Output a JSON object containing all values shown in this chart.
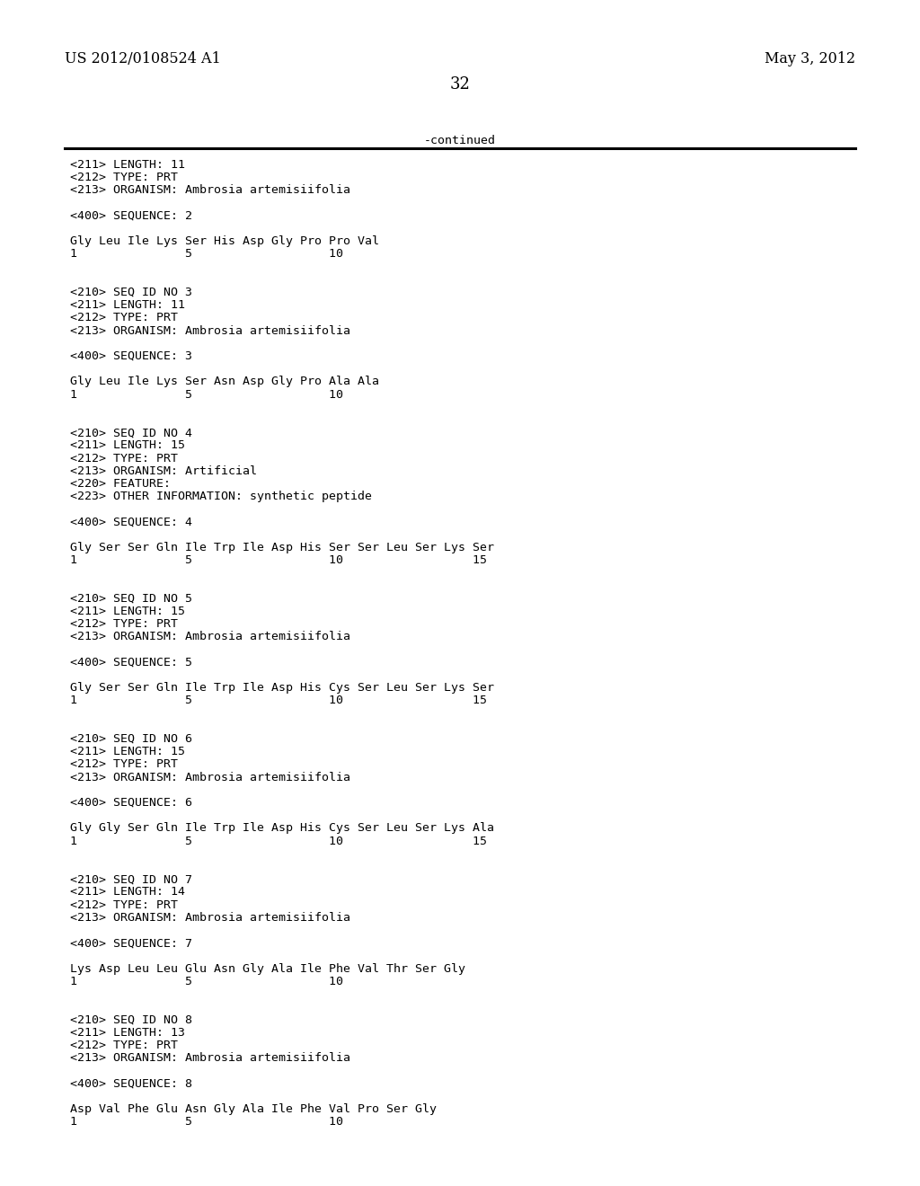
{
  "bg_color": "#ffffff",
  "header_left": "US 2012/0108524 A1",
  "header_right": "May 3, 2012",
  "page_number": "32",
  "continued_text": "-continued",
  "font_size_header": 11.5,
  "font_size_page": 13,
  "font_size_mono": 9.5,
  "lines": [
    "<211> LENGTH: 11",
    "<212> TYPE: PRT",
    "<213> ORGANISM: Ambrosia artemisiifolia",
    "",
    "<400> SEQUENCE: 2",
    "",
    "Gly Leu Ile Lys Ser His Asp Gly Pro Pro Val",
    "1               5                   10",
    "",
    "",
    "<210> SEQ ID NO 3",
    "<211> LENGTH: 11",
    "<212> TYPE: PRT",
    "<213> ORGANISM: Ambrosia artemisiifolia",
    "",
    "<400> SEQUENCE: 3",
    "",
    "Gly Leu Ile Lys Ser Asn Asp Gly Pro Ala Ala",
    "1               5                   10",
    "",
    "",
    "<210> SEQ ID NO 4",
    "<211> LENGTH: 15",
    "<212> TYPE: PRT",
    "<213> ORGANISM: Artificial",
    "<220> FEATURE:",
    "<223> OTHER INFORMATION: synthetic peptide",
    "",
    "<400> SEQUENCE: 4",
    "",
    "Gly Ser Ser Gln Ile Trp Ile Asp His Ser Ser Leu Ser Lys Ser",
    "1               5                   10                  15",
    "",
    "",
    "<210> SEQ ID NO 5",
    "<211> LENGTH: 15",
    "<212> TYPE: PRT",
    "<213> ORGANISM: Ambrosia artemisiifolia",
    "",
    "<400> SEQUENCE: 5",
    "",
    "Gly Ser Ser Gln Ile Trp Ile Asp His Cys Ser Leu Ser Lys Ser",
    "1               5                   10                  15",
    "",
    "",
    "<210> SEQ ID NO 6",
    "<211> LENGTH: 15",
    "<212> TYPE: PRT",
    "<213> ORGANISM: Ambrosia artemisiifolia",
    "",
    "<400> SEQUENCE: 6",
    "",
    "Gly Gly Ser Gln Ile Trp Ile Asp His Cys Ser Leu Ser Lys Ala",
    "1               5                   10                  15",
    "",
    "",
    "<210> SEQ ID NO 7",
    "<211> LENGTH: 14",
    "<212> TYPE: PRT",
    "<213> ORGANISM: Ambrosia artemisiifolia",
    "",
    "<400> SEQUENCE: 7",
    "",
    "Lys Asp Leu Leu Glu Asn Gly Ala Ile Phe Val Thr Ser Gly",
    "1               5                   10",
    "",
    "",
    "<210> SEQ ID NO 8",
    "<211> LENGTH: 13",
    "<212> TYPE: PRT",
    "<213> ORGANISM: Ambrosia artemisiifolia",
    "",
    "<400> SEQUENCE: 8",
    "",
    "Asp Val Phe Glu Asn Gly Ala Ile Phe Val Pro Ser Gly",
    "1               5                   10"
  ]
}
